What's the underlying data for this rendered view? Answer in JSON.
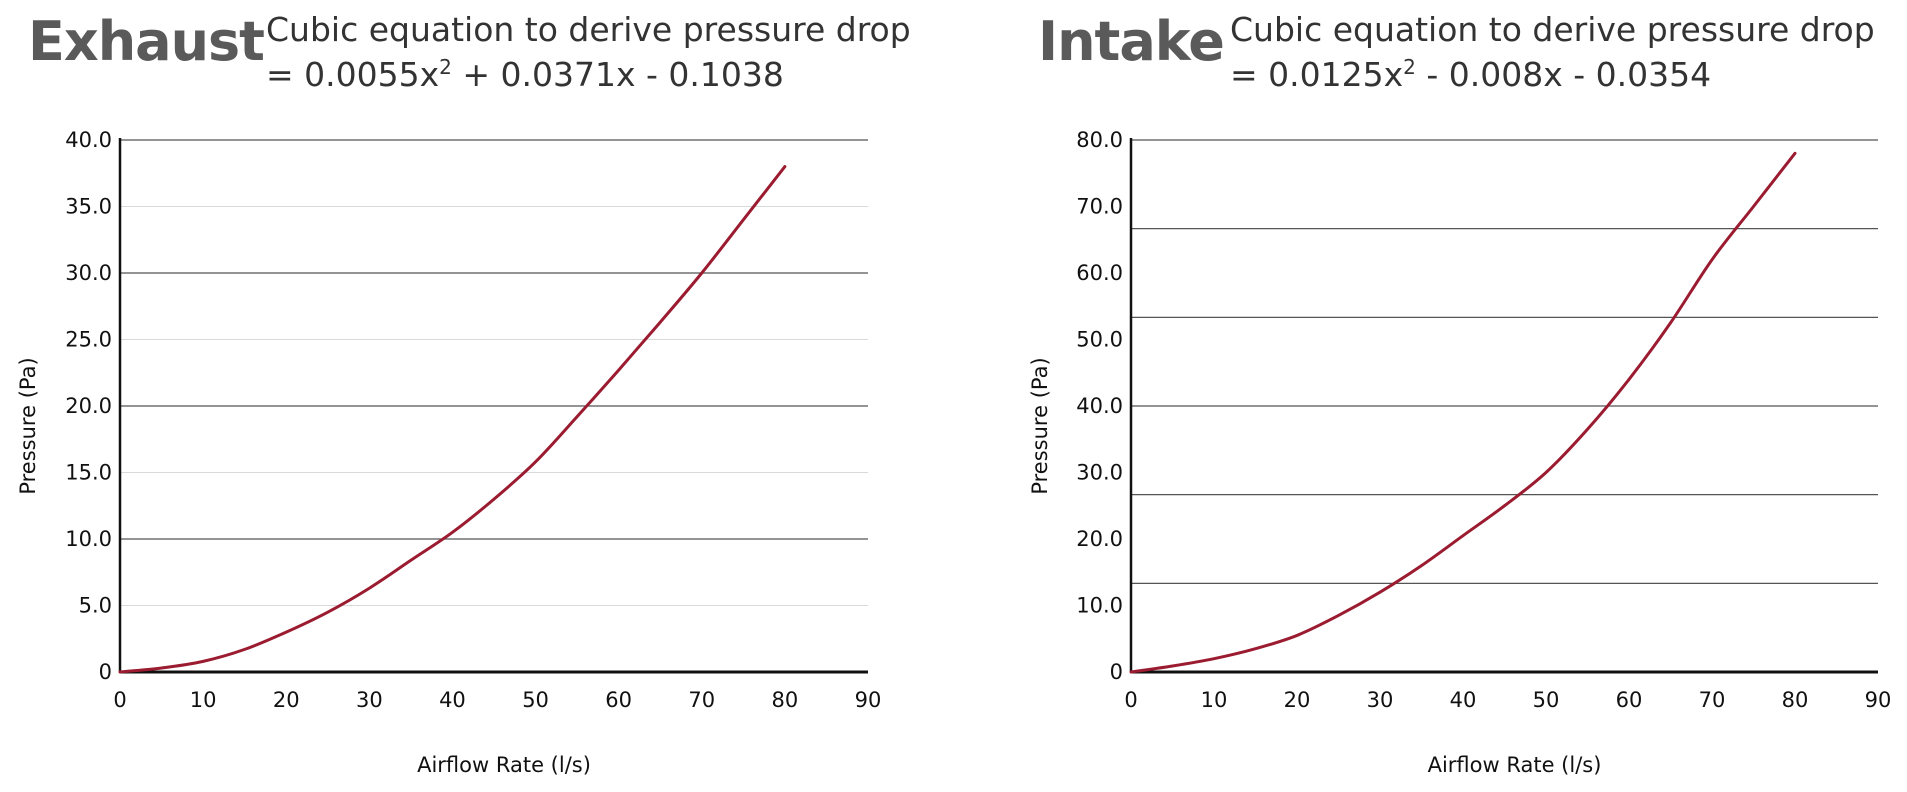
{
  "chart_data": [
    {
      "type": "line",
      "panel_title": "Exhaust",
      "equation_caption": "Cubic equation to derive pressure drop",
      "equation_lhs": "= 0.0055x",
      "equation_exp": "2",
      "equation_rhs": " + 0.0371x - 0.1038",
      "xlabel": "Airflow Rate (l/s)",
      "ylabel": "Pressure (Pa)",
      "xlim": [
        0,
        90
      ],
      "ylim": [
        0,
        40
      ],
      "x_ticks": [
        0,
        10,
        20,
        30,
        40,
        50,
        60,
        70,
        80,
        90
      ],
      "x_tick_labels": [
        "0",
        "10",
        "20",
        "30",
        "40",
        "50",
        "60",
        "70",
        "80",
        "90"
      ],
      "y_ticks": [
        0,
        5,
        10,
        15,
        20,
        25,
        30,
        35,
        40
      ],
      "y_tick_labels": [
        "0",
        "5.0",
        "10.0",
        "15.0",
        "20.0",
        "25.0",
        "30.0",
        "35.0",
        "40.0"
      ],
      "gridlines_dark": [
        10,
        20,
        30,
        40
      ],
      "gridlines_light": [
        5,
        15,
        25,
        35
      ],
      "line_color": "#9b1b30",
      "series": [
        {
          "name": "Exhaust",
          "x": [
            0,
            5,
            10,
            15,
            20,
            25,
            30,
            35,
            40,
            45,
            50,
            55,
            60,
            65,
            70,
            75,
            80
          ],
          "y": [
            0,
            0.3,
            0.8,
            1.7,
            3.0,
            4.5,
            6.3,
            8.4,
            10.5,
            13.0,
            15.8,
            19.2,
            22.7,
            26.3,
            30.0,
            34.0,
            38.0
          ]
        }
      ]
    },
    {
      "type": "line",
      "panel_title": "Intake",
      "equation_caption": "Cubic equation to derive pressure drop",
      "equation_lhs": "= 0.0125x",
      "equation_exp": "2",
      "equation_rhs": " - 0.008x - 0.0354",
      "xlabel": "Airflow Rate (l/s)",
      "ylabel": "Pressure (Pa)",
      "xlim": [
        0,
        90
      ],
      "ylim": [
        0,
        80
      ],
      "x_ticks": [
        0,
        10,
        20,
        30,
        40,
        50,
        60,
        70,
        80,
        90
      ],
      "x_tick_labels": [
        "0",
        "10",
        "20",
        "30",
        "40",
        "50",
        "60",
        "70",
        "80",
        "90"
      ],
      "y_ticks": [
        0,
        10,
        20,
        30,
        40,
        50,
        60,
        70,
        80
      ],
      "y_tick_labels": [
        "0",
        "10.0",
        "20.0",
        "30.0",
        "40.0",
        "50.0",
        "60.0",
        "70.0",
        "80.0"
      ],
      "gridlines_dark": [
        13.33,
        26.67,
        40,
        53.33,
        66.67,
        80
      ],
      "gridlines_light": [],
      "line_color": "#9b1b30",
      "series": [
        {
          "name": "Intake",
          "x": [
            0,
            5,
            10,
            15,
            20,
            25,
            30,
            35,
            40,
            45,
            50,
            55,
            60,
            65,
            70,
            75,
            80
          ],
          "y": [
            0,
            0.9,
            2.0,
            3.5,
            5.5,
            8.5,
            12.0,
            16.0,
            20.5,
            25.0,
            30.0,
            36.5,
            44.0,
            52.5,
            62.0,
            70.0,
            78.0
          ]
        }
      ]
    }
  ]
}
